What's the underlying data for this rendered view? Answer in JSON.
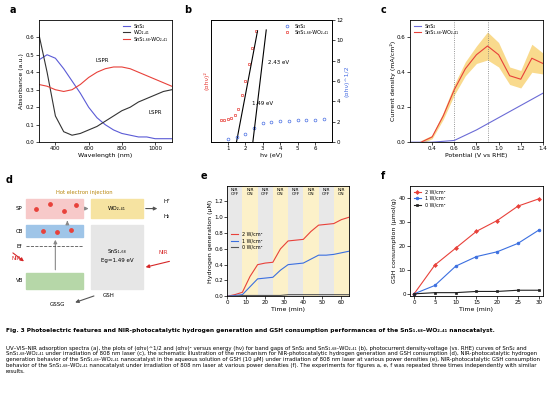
{
  "chart_data": [
    {
      "panel_label": "a",
      "type": "line",
      "x_label": "Wavelength (nm)",
      "y_label": "Absorbance (a.u.)",
      "xlim": [
        300,
        1100
      ],
      "xticks": [
        400,
        600,
        800,
        1000
      ],
      "ylim": [
        0,
        0.7
      ],
      "yticks": [
        0.0,
        0.1,
        0.2,
        0.3,
        0.4,
        0.5,
        0.6
      ],
      "legend": "upper right",
      "series": [
        {
          "name": "SnS₂",
          "color": "#5b5bd6",
          "line_style": "solid",
          "x": [
            300,
            350,
            400,
            450,
            500,
            550,
            600,
            650,
            700,
            750,
            800,
            850,
            900,
            950,
            1000,
            1050,
            1100
          ],
          "values": [
            0.47,
            0.5,
            0.48,
            0.42,
            0.35,
            0.28,
            0.2,
            0.14,
            0.1,
            0.07,
            0.05,
            0.04,
            0.03,
            0.03,
            0.02,
            0.02,
            0.02
          ]
        },
        {
          "name": "WO₂.₄₁",
          "color": "#333333",
          "line_style": "solid",
          "x": [
            300,
            350,
            400,
            450,
            500,
            550,
            600,
            650,
            700,
            750,
            800,
            850,
            900,
            950,
            1000,
            1050,
            1100
          ],
          "values": [
            0.62,
            0.4,
            0.15,
            0.06,
            0.04,
            0.05,
            0.07,
            0.09,
            0.12,
            0.15,
            0.18,
            0.2,
            0.23,
            0.25,
            0.27,
            0.29,
            0.3
          ]
        },
        {
          "name": "SnS₁.₆₈-WO₂.₄₁",
          "color": "#e8413a",
          "line_style": "solid",
          "x": [
            300,
            350,
            400,
            450,
            500,
            550,
            600,
            650,
            700,
            750,
            800,
            850,
            900,
            950,
            1000,
            1050,
            1100
          ],
          "values": [
            0.33,
            0.32,
            0.3,
            0.29,
            0.3,
            0.33,
            0.37,
            0.4,
            0.42,
            0.43,
            0.43,
            0.42,
            0.4,
            0.38,
            0.36,
            0.34,
            0.32
          ]
        }
      ],
      "annotations": [
        {
          "text": "LSPR",
          "x": 640,
          "y": 0.46
        },
        {
          "text": "LSPR",
          "x": 960,
          "y": 0.16
        }
      ]
    },
    {
      "panel_label": "b",
      "type": "line",
      "x_label": "hν (eV)",
      "y_label": "(αhν)²",
      "y2_label": "(αhν)^1/2",
      "xlim": [
        0,
        7
      ],
      "xticks": [
        1,
        2,
        3,
        4,
        5,
        6
      ],
      "ylim": [
        0,
        1.1
      ],
      "yticks": [],
      "y2lim": [
        0,
        12
      ],
      "y2ticks": [
        0,
        2,
        4,
        6,
        8,
        10,
        12
      ],
      "legend": "upper right",
      "series": [
        {
          "name": "SnS₂",
          "color": "#4a6fe3",
          "marker": "circle",
          "line_style": "none",
          "axis": "y2",
          "x": [
            1.0,
            1.5,
            2.0,
            2.5,
            3.0,
            3.5,
            4.0,
            4.5,
            5.0,
            5.5,
            6.0,
            6.5
          ],
          "values": [
            0.3,
            0.5,
            0.8,
            1.4,
            1.9,
            2.0,
            2.1,
            2.1,
            2.2,
            2.2,
            2.2,
            2.3
          ]
        },
        {
          "name": "SnS₁.₆₈-WO₂.₄₁",
          "color": "#e8413a",
          "marker": "square",
          "line_style": "none",
          "x": [
            0.6,
            0.8,
            1.0,
            1.2,
            1.4,
            1.6,
            1.8,
            2.0,
            2.2,
            2.4,
            2.6
          ],
          "values": [
            0.2,
            0.2,
            0.21,
            0.22,
            0.24,
            0.3,
            0.42,
            0.55,
            0.7,
            0.85,
            1.0
          ]
        },
        {
          "color": "#000000",
          "line_style": "solid",
          "x": [
            1.49,
            2.7
          ],
          "values": [
            0,
            1.0
          ]
        },
        {
          "color": "#000000",
          "line_style": "solid",
          "axis": "y2",
          "x": [
            2.43,
            3.2
          ],
          "values": [
            0,
            11
          ]
        }
      ],
      "annotations": [
        {
          "text": "2.43 eV",
          "x": 3.3,
          "y": 0.7
        },
        {
          "text": "1.49 eV",
          "x": 2.4,
          "y": 0.33
        }
      ]
    },
    {
      "panel_label": "c",
      "type": "line",
      "x_label": "Potential (V vs RHE)",
      "y_label": "Current density (mA/cm²)",
      "xlim": [
        0.2,
        1.4
      ],
      "xticks": [
        0.4,
        0.6,
        0.8,
        1.0,
        1.2,
        1.4
      ],
      "ylim": [
        0,
        0.7
      ],
      "yticks": [
        0.0,
        0.2,
        0.4,
        0.6
      ],
      "legend": "upper left",
      "reference_lines": [
        0.6,
        0.9
      ],
      "series": [
        {
          "name": "SnS₂",
          "color": "#6b6bd6",
          "line_style": "solid",
          "x": [
            0.2,
            0.4,
            0.6,
            0.8,
            1.0,
            1.2,
            1.4
          ],
          "values": [
            0,
            0,
            0.01,
            0.07,
            0.14,
            0.21,
            0.28
          ]
        },
        {
          "name": "SnS₁.₆₈-WO₂.₄₁",
          "color": "#e8413a",
          "line_style": "solid",
          "x": [
            0.3,
            0.4,
            0.5,
            0.6,
            0.7,
            0.8,
            0.9,
            1.0,
            1.1,
            1.2,
            1.3,
            1.4
          ],
          "values": [
            0.0,
            0.03,
            0.15,
            0.3,
            0.42,
            0.5,
            0.55,
            0.5,
            0.38,
            0.36,
            0.48,
            0.45
          ],
          "error": [
            0.01,
            0.01,
            0.02,
            0.03,
            0.04,
            0.05,
            0.08,
            0.07,
            0.05,
            0.05,
            0.08,
            0.06
          ]
        }
      ]
    },
    {
      "panel_label": "e",
      "type": "line",
      "x_label": "Time (min)",
      "y_label": "Hydrogen generation (μM)",
      "xlim": [
        0,
        64
      ],
      "xticks": [
        0,
        10,
        20,
        30,
        40,
        50,
        60
      ],
      "ylim": [
        0,
        1.4
      ],
      "yticks": [
        0.0,
        0.2,
        0.4,
        0.6,
        0.8,
        1.0,
        1.2
      ],
      "legend": "center left",
      "intervals": [
        {
          "label": "NIR\nOFF",
          "start": 0,
          "end": 8,
          "color": "#d9d9d9"
        },
        {
          "label": "NIR\nON",
          "start": 8,
          "end": 16,
          "color": "#fbe9a6"
        },
        {
          "label": "NIR\nOFF",
          "start": 16,
          "end": 24,
          "color": "#d9d9d9"
        },
        {
          "label": "NIR\nON",
          "start": 24,
          "end": 32,
          "color": "#fbe9a6"
        },
        {
          "label": "NIR\nOFF",
          "start": 32,
          "end": 40,
          "color": "#d9d9d9"
        },
        {
          "label": "NIR\nON",
          "start": 40,
          "end": 48,
          "color": "#fbe9a6"
        },
        {
          "label": "NIR\nOFF",
          "start": 48,
          "end": 56,
          "color": "#d9d9d9"
        },
        {
          "label": "NIR\nON",
          "start": 56,
          "end": 64,
          "color": "#fbe9a6"
        }
      ],
      "series": [
        {
          "name": "2 W/cm²",
          "color": "#e8413a",
          "line_style": "solid",
          "x": [
            0,
            4,
            8,
            12,
            16,
            20,
            24,
            28,
            32,
            36,
            40,
            44,
            48,
            52,
            56,
            60,
            64
          ],
          "values": [
            0,
            0.02,
            0.05,
            0.25,
            0.4,
            0.42,
            0.43,
            0.6,
            0.7,
            0.71,
            0.72,
            0.82,
            0.9,
            0.91,
            0.92,
            0.97,
            1.0
          ]
        },
        {
          "name": "1 W/cm²",
          "color": "#3b6fe0",
          "line_style": "solid",
          "x": [
            0,
            4,
            8,
            12,
            16,
            20,
            24,
            28,
            32,
            36,
            40,
            44,
            48,
            52,
            56,
            60,
            64
          ],
          "values": [
            0,
            0.01,
            0.02,
            0.12,
            0.22,
            0.23,
            0.24,
            0.33,
            0.4,
            0.41,
            0.42,
            0.47,
            0.52,
            0.52,
            0.53,
            0.55,
            0.57
          ]
        },
        {
          "name": "0 W/cm²",
          "color": "#555555",
          "line_style": "solid",
          "x": [
            0,
            4,
            8,
            12,
            16,
            20,
            24,
            28,
            32,
            36,
            40,
            44,
            48,
            52,
            56,
            60,
            64
          ],
          "values": [
            0,
            0,
            0.01,
            0.01,
            0.01,
            0.01,
            0.01,
            0.01,
            0.02,
            0.02,
            0.02,
            0.02,
            0.02,
            0.02,
            0.02,
            0.02,
            0.02
          ]
        }
      ]
    },
    {
      "panel_label": "f",
      "type": "line",
      "x_label": "Time (min)",
      "y_label": "GSH consumption (μmol/g)",
      "xlim": [
        -1,
        31
      ],
      "xticks": [
        0,
        5,
        10,
        15,
        20,
        25,
        30
      ],
      "ylim": [
        -1,
        45
      ],
      "yticks": [
        0,
        10,
        20,
        30,
        40
      ],
      "legend": "upper left",
      "series": [
        {
          "name": "2 W/cm²",
          "color": "#e8413a",
          "marker": "diamond",
          "line_style": "solid",
          "x": [
            0,
            5,
            10,
            15,
            20,
            25,
            30
          ],
          "values": [
            0,
            12,
            19,
            26,
            30.5,
            36.5,
            39.5
          ]
        },
        {
          "name": "1 W/cm²",
          "color": "#3b6fe0",
          "marker": "circle",
          "line_style": "solid",
          "x": [
            0,
            5,
            10,
            15,
            20,
            25,
            30
          ],
          "values": [
            0,
            3.5,
            11.5,
            15.5,
            17.5,
            21,
            26.5
          ]
        },
        {
          "name": "0 W/cm²",
          "color": "#222222",
          "marker": "square",
          "line_style": "solid",
          "x": [
            0,
            5,
            10,
            15,
            20,
            25,
            30
          ],
          "values": [
            0,
            0.5,
            0.5,
            1,
            1,
            1.5,
            1.5
          ]
        }
      ]
    }
  ],
  "diagram": {
    "panel_label": "d",
    "labels": {
      "sp": "SP",
      "cb": "CB",
      "ef": "Ef",
      "vb": "VB",
      "wo": "WO₂.₄₁",
      "h_plus": "H⁺",
      "h2": "H₂",
      "sns": "SnS₁.₆₈",
      "eg": "Eg=1.49 eV",
      "gsh": "GSH",
      "gssg": "GSSG",
      "nir_left": "NIR",
      "nir_right": "NIR",
      "hot_electron": "Hot electron injection"
    }
  },
  "caption": {
    "title": "Fig. 3 Photoelectric features and NIR-photocatalytic hydrogen generation and GSH consumption performances of the SnS₁.₆₈–WO₂.₄₁ nanocatalyst.",
    "text": "UV–VIS–NIR adsorption spectra (a), the plots of (αhν)^1/2 and (αhν)² versus energy (hν) for band gaps of SnS₂ and SnS₁.₆₈–WO₂.₄₁ (b), photocurrent density-voltage (vs. RHE) curves of SnS₂ and SnS₁.₆₈-WO₂.₄₁ under irradiation of 808 nm laser (c), the schematic illustration of the mechanism for NIR-photocatalytic hydrogen generation and GSH consumption (d), NIR-photocatalytic hydrogen generation behavior of the SnS₁.₆₈–WO₂.₄₁ nanocatalyst in the aqueous solution of GSH (10 μM) under irradiation of 808 nm laser at various power densities (e), NIR-photocatalytic GSH consumption behavior of the SnS₁.₆₈–WO₂.₄₁ nanocatalyst under irradiation of 808 nm laser at various power densities (f). The experiments for figures a, e, f was repeated three times independently with similar results."
  }
}
